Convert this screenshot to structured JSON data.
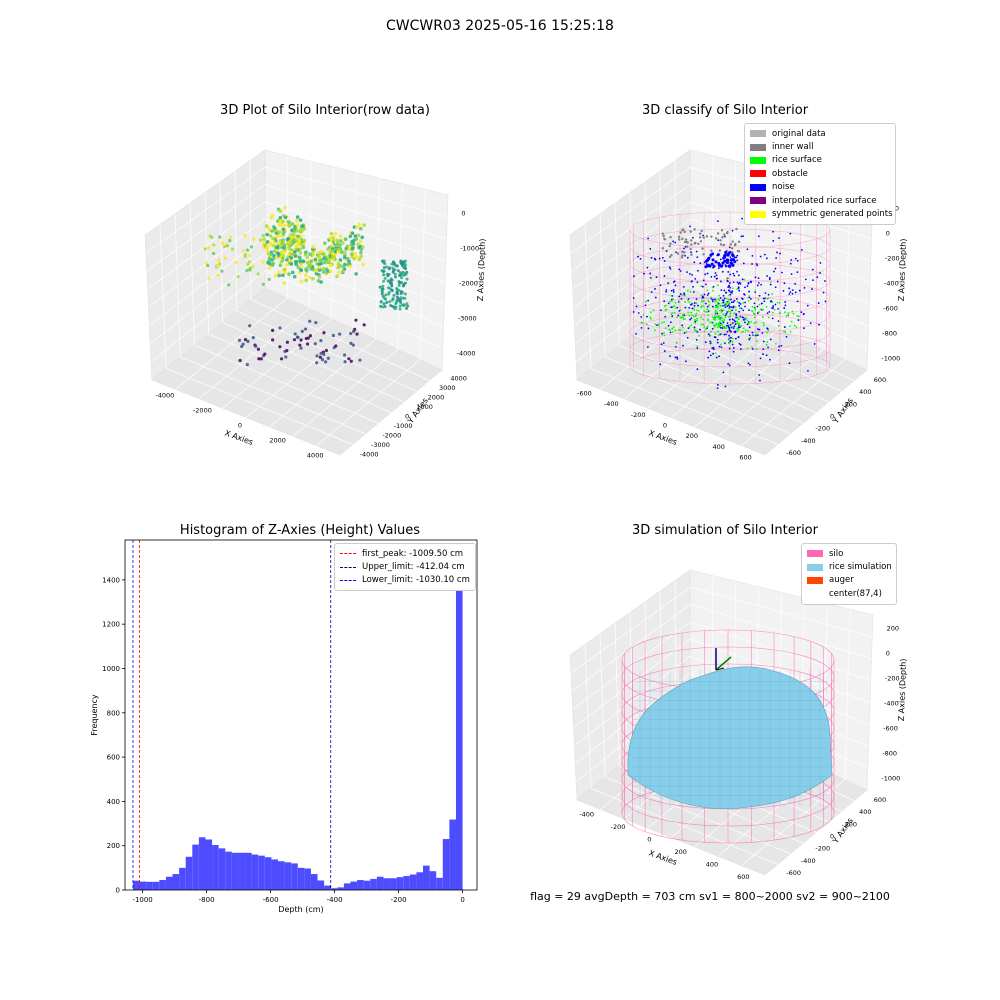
{
  "figure": {
    "suptitle": "CWCWR03 2025-05-16 15:25:18",
    "status_line": "flag = 29   avgDepth = 703 cm   sv1 = 800~2000   sv2 = 900~2100"
  },
  "chart_data": [
    {
      "type": "scatter",
      "title": "3D Plot of Silo Interior(row data)",
      "xlabel": "X Axies",
      "ylabel": "Y Axies",
      "zlabel": "Z Axies (Depth)",
      "x_ticks": [
        "-4000",
        "-2000",
        "0",
        "2000",
        "4000"
      ],
      "y_ticks": [
        "-4000",
        "-3000",
        "-2000",
        "-1000",
        "0",
        "1000",
        "2000",
        "3000",
        "4000"
      ],
      "z_ticks": [
        "0",
        "-1000",
        "-2000",
        "-3000",
        "-4000"
      ],
      "xlim": [
        -4500,
        4500
      ],
      "ylim": [
        -4500,
        4500
      ],
      "zlim": [
        -4500,
        200
      ],
      "colormap": "viridis",
      "grid": true
    },
    {
      "type": "scatter",
      "title": "3D classify of Silo Interior",
      "xlabel": "X Axies",
      "ylabel": "Y Axies",
      "zlabel": "Z Axies (Depth)",
      "x_ticks": [
        "-600",
        "-400",
        "-200",
        "0",
        "200",
        "400",
        "600"
      ],
      "y_ticks": [
        "-600",
        "-400",
        "-200",
        "0",
        "200",
        "400",
        "600"
      ],
      "z_ticks": [
        "200",
        "0",
        "-200",
        "-400",
        "-600",
        "-800",
        "-1000"
      ],
      "legend": [
        {
          "label": "original data",
          "color": "#b3b3b3"
        },
        {
          "label": "inner wall",
          "color": "#808080"
        },
        {
          "label": "rice surface",
          "color": "#00ff00"
        },
        {
          "label": "obstacle",
          "color": "#ff0000"
        },
        {
          "label": "noise",
          "color": "#0000ff"
        },
        {
          "label": "interpolated rice surface",
          "color": "#800080"
        },
        {
          "label": "symmetric generated points",
          "color": "#ffff00"
        }
      ],
      "legend_loc": "upper right",
      "grid": true
    },
    {
      "type": "bar",
      "title": "Histogram of Z-Axies (Height) Values",
      "xlabel": "Depth (cm)",
      "ylabel": "Frequency",
      "xlim": [
        -1055,
        45
      ],
      "ylim": [
        0,
        1580
      ],
      "x_ticks": [
        -1000,
        -800,
        -600,
        -400,
        -200,
        0
      ],
      "y_ticks": [
        0,
        200,
        400,
        600,
        800,
        1000,
        1200,
        1400
      ],
      "bar_color": "#4d4dff",
      "bin_width": 20.6,
      "bin_starts": [
        -1030.1,
        -1009.5,
        -988.9,
        -968.3,
        -947.7,
        -927.1,
        -906.5,
        -885.9,
        -865.3,
        -844.7,
        -824.1,
        -803.5,
        -782.9,
        -762.3,
        -741.7,
        -721.1,
        -700.5,
        -679.9,
        -659.3,
        -638.7,
        -618.1,
        -597.5,
        -576.9,
        -556.3,
        -535.7,
        -515.1,
        -494.5,
        -473.9,
        -453.3,
        -432.7,
        -412.1,
        -391.5,
        -370.9,
        -350.3,
        -329.7,
        -309.1,
        -288.5,
        -267.9,
        -247.3,
        -226.7,
        -206.1,
        -185.5,
        -164.9,
        -144.3,
        -123.7,
        -103.1,
        -82.5,
        -61.9,
        -41.3,
        -20.7
      ],
      "values": [
        42,
        38,
        37,
        37,
        45,
        60,
        72,
        100,
        150,
        205,
        238,
        228,
        203,
        188,
        173,
        168,
        168,
        168,
        160,
        155,
        148,
        138,
        130,
        125,
        120,
        100,
        97,
        72,
        43,
        20,
        8,
        12,
        30,
        38,
        45,
        42,
        50,
        60,
        53,
        53,
        58,
        63,
        70,
        80,
        110,
        85,
        55,
        230,
        318,
        1510
      ],
      "vlines": [
        {
          "label": "first_peak: -1009.50 cm",
          "x": -1009.5,
          "color": "#ff0000"
        },
        {
          "label": "Upper_limit: -412.04 cm",
          "x": -412.04,
          "color": "#00008b"
        },
        {
          "label": "Lower_limit: -1030.10 cm",
          "x": -1030.1,
          "color": "#0000ff"
        }
      ],
      "legend_loc": "upper right",
      "grid": false
    },
    {
      "type": "area",
      "title": "3D simulation of Silo Interior",
      "xlabel": "X Axies",
      "ylabel": "Y Axies",
      "zlabel": "Z Axies (Depth)",
      "x_ticks": [
        "-400",
        "-200",
        "0",
        "200",
        "400",
        "600"
      ],
      "y_ticks": [
        "-600",
        "-400",
        "-200",
        "0",
        "200",
        "400",
        "600"
      ],
      "z_ticks": [
        "200",
        "0",
        "-200",
        "-400",
        "-600",
        "-800",
        "-1000"
      ],
      "legend": [
        {
          "label": "silo",
          "color": "#ff69b4"
        },
        {
          "label": "rice simulation",
          "color": "#87ceeb"
        },
        {
          "label": "auger",
          "color": "#ff4500"
        },
        {
          "label": "center(87,4)",
          "color": ""
        }
      ],
      "legend_loc": "upper right",
      "grid": true
    }
  ]
}
